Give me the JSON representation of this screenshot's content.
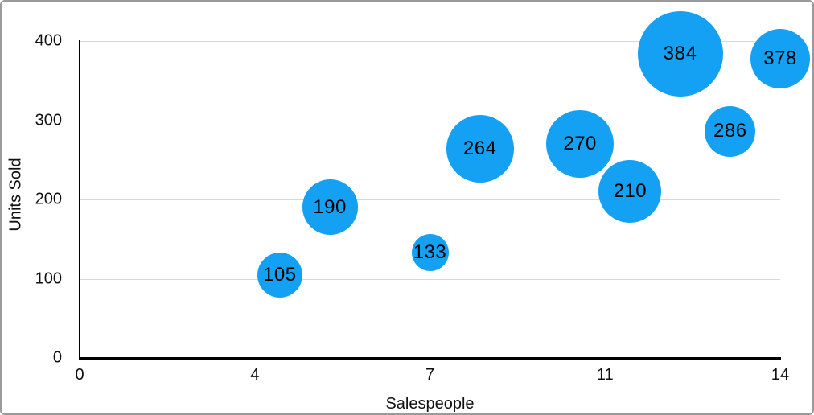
{
  "figure": {
    "background": "#ffffff",
    "border_color": "#9a9a9a"
  },
  "chart_data": {
    "type": "scatter",
    "variant": "bubble",
    "title": "",
    "xlabel": "Salespeople",
    "ylabel": "Units Sold",
    "xlim": [
      0,
      14
    ],
    "ylim": [
      0,
      400
    ],
    "grid": "horizontal gridlines only",
    "legend": "none",
    "x_ticks": [
      {
        "pos": 0.0,
        "label": "0"
      },
      {
        "pos": 0.25,
        "label": "4"
      },
      {
        "pos": 0.5,
        "label": "7"
      },
      {
        "pos": 0.75,
        "label": "11"
      },
      {
        "pos": 1.0,
        "label": "14"
      }
    ],
    "y_ticks": [
      {
        "value": 0,
        "label": "0"
      },
      {
        "value": 100,
        "label": "100"
      },
      {
        "value": 200,
        "label": "200"
      },
      {
        "value": 300,
        "label": "300"
      },
      {
        "value": 400,
        "label": "400"
      }
    ],
    "points": [
      {
        "x": 4,
        "y": 105,
        "label": "105",
        "bubble_radius_px": 28
      },
      {
        "x": 5,
        "y": 190,
        "label": "190",
        "bubble_radius_px": 34.5
      },
      {
        "x": 7,
        "y": 133,
        "label": "133",
        "bubble_radius_px": 23
      },
      {
        "x": 8,
        "y": 264,
        "label": "264",
        "bubble_radius_px": 42
      },
      {
        "x": 10,
        "y": 270,
        "label": "270",
        "bubble_radius_px": 42
      },
      {
        "x": 11,
        "y": 210,
        "label": "210",
        "bubble_radius_px": 39
      },
      {
        "x": 12,
        "y": 384,
        "label": "384",
        "bubble_radius_px": 53
      },
      {
        "x": 13,
        "y": 286,
        "label": "286",
        "bubble_radius_px": 31.5
      },
      {
        "x": 14,
        "y": 378,
        "label": "378",
        "bubble_radius_px": 37
      }
    ],
    "colors": {
      "bubble": "#14a0f3",
      "bubble_label": "#000000",
      "axis": "#000000",
      "gridline": "#d8d8d8",
      "tick_label": "#111111"
    }
  }
}
